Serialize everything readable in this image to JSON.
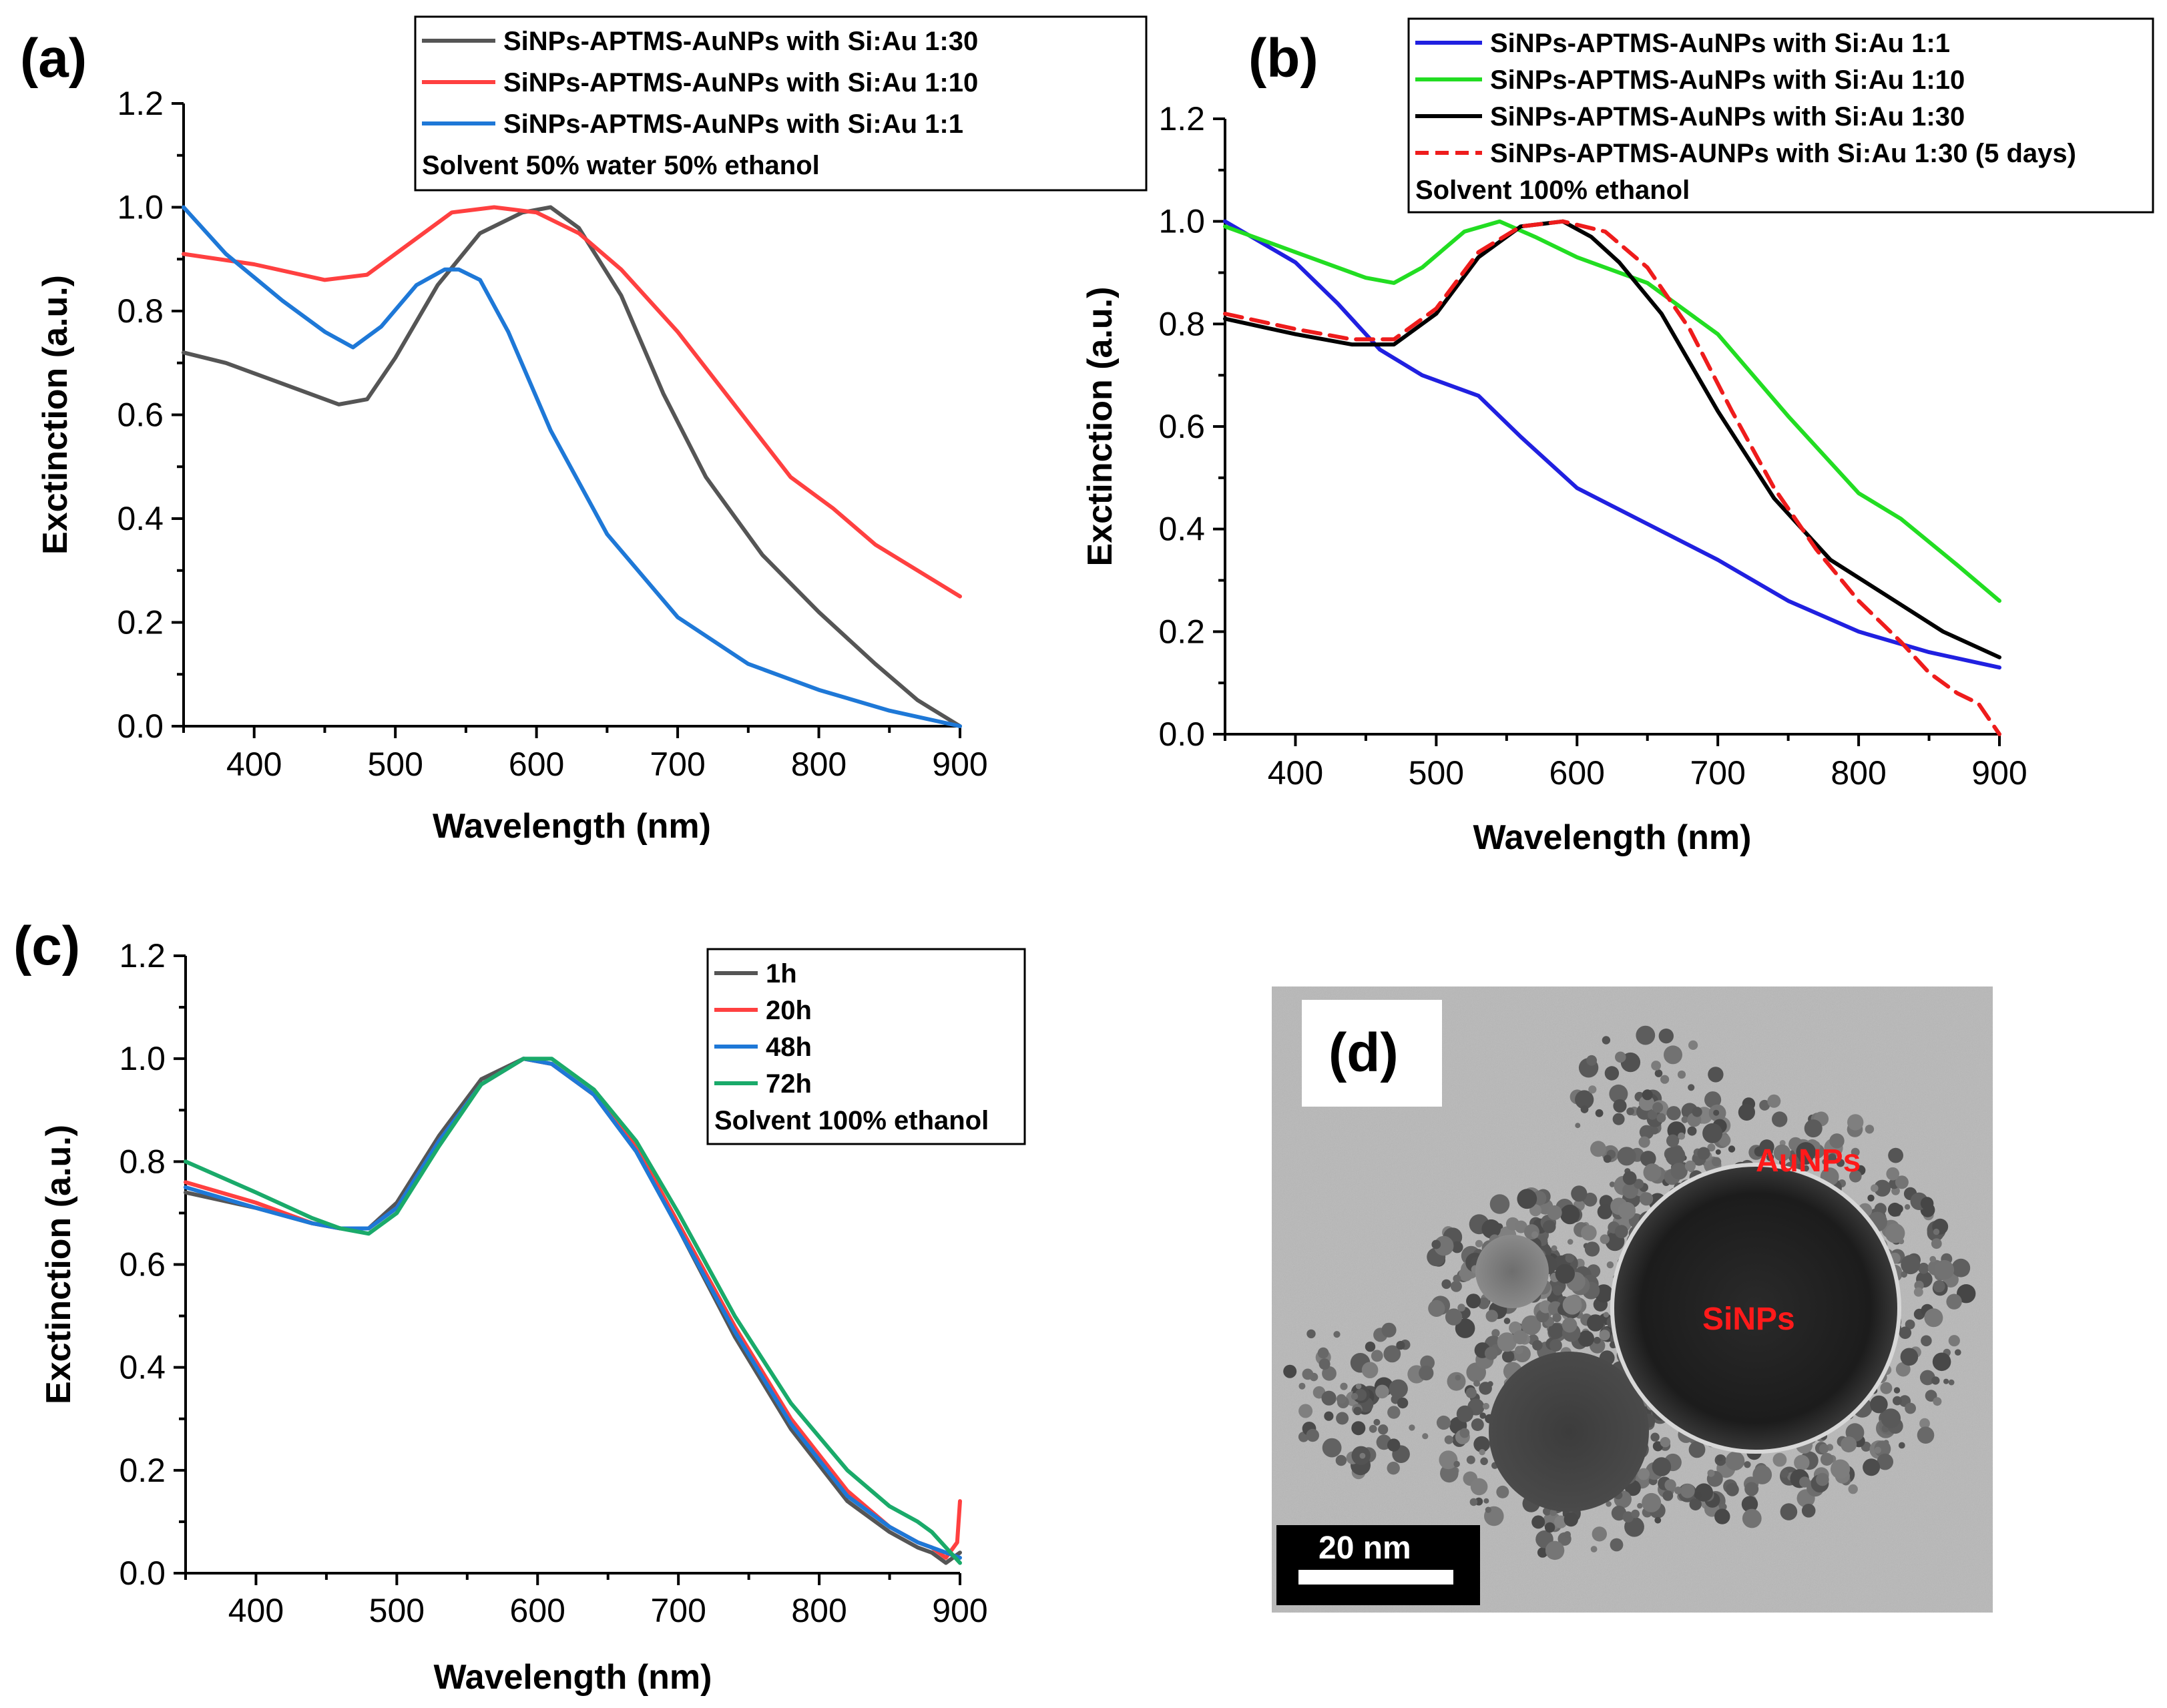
{
  "panels": {
    "a": "(a)",
    "b": "(b)",
    "c": "(c)",
    "d": "(d)"
  },
  "chart_data": [
    {
      "id": "a",
      "type": "line",
      "title": "",
      "xlabel": "Wavelength (nm)",
      "ylabel": "Exctinction (a.u.)",
      "xlim": [
        350,
        900
      ],
      "ylim": [
        0,
        1.2
      ],
      "xticks": [
        400,
        500,
        600,
        700,
        800,
        900
      ],
      "yticks": [
        "0.0",
        "0.2",
        "0.4",
        "0.6",
        "0.8",
        "1.0",
        "1.2"
      ],
      "legend_position": "top-right",
      "note": "Solvent 50% water 50% ethanol",
      "series": [
        {
          "name": "SiNPs-APTMS-AuNPs with Si:Au 1:30",
          "color": "#555555",
          "style": "solid",
          "x": [
            350,
            380,
            420,
            460,
            480,
            500,
            530,
            560,
            590,
            610,
            630,
            660,
            690,
            720,
            760,
            800,
            840,
            870,
            900
          ],
          "y": [
            0.72,
            0.7,
            0.66,
            0.62,
            0.63,
            0.71,
            0.85,
            0.95,
            0.99,
            1.0,
            0.96,
            0.83,
            0.64,
            0.48,
            0.33,
            0.22,
            0.12,
            0.05,
            0.0
          ]
        },
        {
          "name": "SiNPs-APTMS-AuNPs with Si:Au 1:10",
          "color": "#ff4040",
          "style": "solid",
          "x": [
            350,
            400,
            450,
            480,
            510,
            540,
            570,
            600,
            630,
            660,
            700,
            740,
            780,
            810,
            840,
            870,
            900
          ],
          "y": [
            0.91,
            0.89,
            0.86,
            0.87,
            0.93,
            0.99,
            1.0,
            0.99,
            0.95,
            0.88,
            0.76,
            0.62,
            0.48,
            0.42,
            0.35,
            0.3,
            0.25
          ]
        },
        {
          "name": "SiNPs-APTMS-AuNPs with Si:Au 1:1",
          "color": "#1e78d7",
          "style": "solid",
          "x": [
            350,
            380,
            420,
            450,
            470,
            490,
            515,
            535,
            545,
            560,
            580,
            610,
            650,
            700,
            750,
            800,
            850,
            900
          ],
          "y": [
            1.0,
            0.91,
            0.82,
            0.76,
            0.73,
            0.77,
            0.85,
            0.88,
            0.88,
            0.86,
            0.76,
            0.57,
            0.37,
            0.21,
            0.12,
            0.07,
            0.03,
            0.0
          ]
        }
      ]
    },
    {
      "id": "b",
      "type": "line",
      "title": "",
      "xlabel": "Wavelength (nm)",
      "ylabel": "Exctinction (a.u.)",
      "xlim": [
        350,
        900
      ],
      "ylim": [
        0,
        1.2
      ],
      "xticks": [
        400,
        500,
        600,
        700,
        800,
        900
      ],
      "yticks": [
        "0.0",
        "0.2",
        "0.4",
        "0.6",
        "0.8",
        "1.0",
        "1.2"
      ],
      "legend_position": "top-right",
      "note": "Solvent 100% ethanol",
      "series": [
        {
          "name": "SiNPs-APTMS-AuNPs with Si:Au 1:1",
          "color": "#2020e0",
          "style": "solid",
          "x": [
            350,
            400,
            430,
            460,
            490,
            530,
            560,
            600,
            650,
            700,
            750,
            800,
            850,
            900
          ],
          "y": [
            1.0,
            0.92,
            0.84,
            0.75,
            0.7,
            0.66,
            0.58,
            0.48,
            0.41,
            0.34,
            0.26,
            0.2,
            0.16,
            0.13
          ]
        },
        {
          "name": "SiNPs-APTMS-AuNPs with Si:Au 1:10",
          "color": "#22dd22",
          "style": "solid",
          "x": [
            350,
            400,
            450,
            470,
            490,
            520,
            545,
            570,
            600,
            650,
            700,
            750,
            800,
            830,
            870,
            900
          ],
          "y": [
            0.99,
            0.94,
            0.89,
            0.88,
            0.91,
            0.98,
            1.0,
            0.97,
            0.93,
            0.88,
            0.78,
            0.62,
            0.47,
            0.42,
            0.33,
            0.26
          ]
        },
        {
          "name": "SiNPs-APTMS-AuNPs with Si:Au 1:30",
          "color": "#000000",
          "style": "solid",
          "x": [
            350,
            400,
            440,
            470,
            500,
            530,
            560,
            590,
            610,
            630,
            660,
            700,
            740,
            780,
            820,
            860,
            900
          ],
          "y": [
            0.81,
            0.78,
            0.76,
            0.76,
            0.82,
            0.93,
            0.99,
            1.0,
            0.97,
            0.92,
            0.82,
            0.63,
            0.46,
            0.34,
            0.27,
            0.2,
            0.15
          ]
        },
        {
          "name": "SiNPs-APTMS-AUNPs with Si:Au 1:30 (5 days)",
          "color": "#ee1c1c",
          "style": "dashed",
          "x": [
            350,
            400,
            440,
            470,
            500,
            530,
            560,
            590,
            620,
            650,
            680,
            710,
            740,
            770,
            800,
            830,
            850,
            870,
            885,
            900
          ],
          "y": [
            0.82,
            0.79,
            0.77,
            0.77,
            0.83,
            0.94,
            0.99,
            1.0,
            0.98,
            0.91,
            0.79,
            0.63,
            0.48,
            0.36,
            0.26,
            0.18,
            0.12,
            0.08,
            0.06,
            0.0
          ]
        }
      ]
    },
    {
      "id": "c",
      "type": "line",
      "title": "",
      "xlabel": "Wavelength (nm)",
      "ylabel": "Exctinction (a.u.)",
      "xlim": [
        350,
        900
      ],
      "ylim": [
        0,
        1.2
      ],
      "xticks": [
        400,
        500,
        600,
        700,
        800,
        900
      ],
      "yticks": [
        "0.0",
        "0.2",
        "0.4",
        "0.6",
        "0.8",
        "1.0",
        "1.2"
      ],
      "legend_position": "top-right",
      "note": "Solvent 100% ethanol",
      "series": [
        {
          "name": "1h",
          "color": "#555555",
          "style": "solid",
          "x": [
            350,
            400,
            440,
            460,
            480,
            500,
            530,
            560,
            590,
            610,
            640,
            670,
            700,
            740,
            780,
            820,
            850,
            870,
            880,
            890,
            900
          ],
          "y": [
            0.74,
            0.71,
            0.68,
            0.67,
            0.67,
            0.72,
            0.85,
            0.96,
            1.0,
            0.99,
            0.93,
            0.82,
            0.67,
            0.46,
            0.28,
            0.14,
            0.08,
            0.05,
            0.04,
            0.02,
            0.04
          ]
        },
        {
          "name": "20h",
          "color": "#ff4040",
          "style": "solid",
          "x": [
            350,
            400,
            440,
            460,
            480,
            500,
            530,
            560,
            590,
            610,
            640,
            670,
            700,
            740,
            780,
            820,
            850,
            870,
            880,
            890,
            898,
            900
          ],
          "y": [
            0.76,
            0.72,
            0.68,
            0.67,
            0.67,
            0.71,
            0.84,
            0.95,
            1.0,
            0.99,
            0.93,
            0.83,
            0.68,
            0.48,
            0.3,
            0.16,
            0.09,
            0.06,
            0.05,
            0.03,
            0.06,
            0.14
          ]
        },
        {
          "name": "48h",
          "color": "#1e78d7",
          "style": "solid",
          "x": [
            350,
            400,
            440,
            460,
            480,
            500,
            530,
            560,
            590,
            610,
            640,
            670,
            700,
            740,
            780,
            820,
            850,
            870,
            890,
            900
          ],
          "y": [
            0.75,
            0.71,
            0.68,
            0.67,
            0.67,
            0.71,
            0.84,
            0.95,
            1.0,
            0.99,
            0.93,
            0.82,
            0.67,
            0.47,
            0.29,
            0.15,
            0.09,
            0.06,
            0.04,
            0.03
          ]
        },
        {
          "name": "72h",
          "color": "#1aaa6a",
          "style": "solid",
          "x": [
            350,
            400,
            440,
            460,
            480,
            500,
            530,
            560,
            590,
            610,
            640,
            670,
            700,
            740,
            780,
            820,
            850,
            870,
            880,
            890,
            900
          ],
          "y": [
            0.8,
            0.74,
            0.69,
            0.67,
            0.66,
            0.7,
            0.83,
            0.95,
            1.0,
            1.0,
            0.94,
            0.84,
            0.7,
            0.5,
            0.33,
            0.2,
            0.13,
            0.1,
            0.08,
            0.05,
            0.02
          ]
        }
      ]
    }
  ],
  "tem": {
    "label_auNPs": "AuNPs",
    "label_siNPs": "SiNPs",
    "scale_bar": "20 nm"
  }
}
